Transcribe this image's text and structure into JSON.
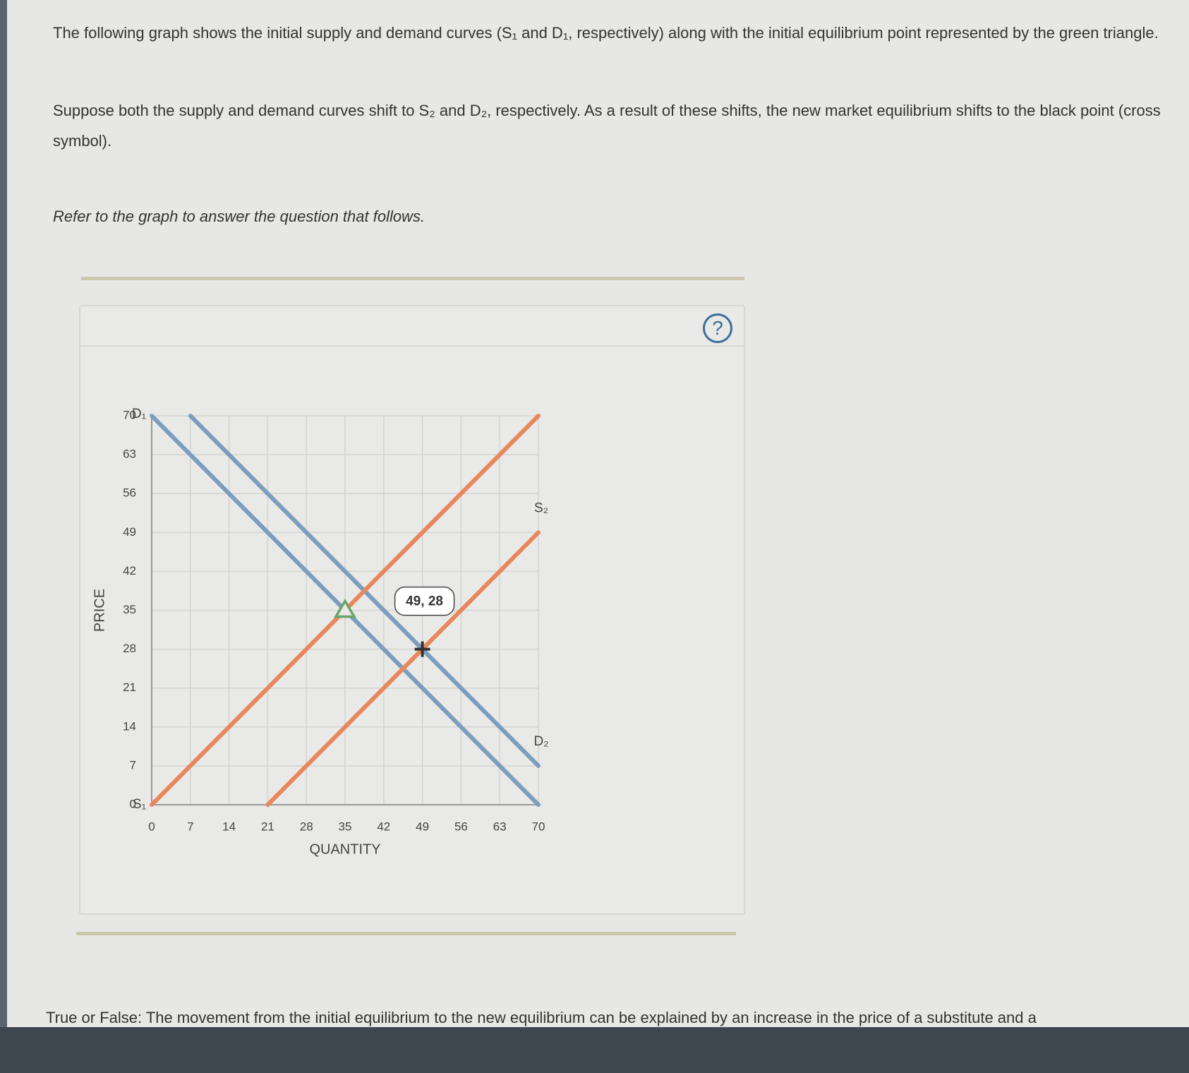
{
  "intro": {
    "paragraph1": "The following graph shows the initial supply and demand curves (S₁ and D₁, respectively) along with the initial equilibrium point represented by the green triangle.",
    "paragraph2": "Suppose both the supply and demand curves shift to S₂ and D₂, respectively. As a result of these shifts, the new market equilibrium shifts to the black point (cross symbol).",
    "instruction": "Refer to the graph to answer the question that follows."
  },
  "help_button": "?",
  "chart_data": {
    "type": "line",
    "xlabel": "QUANTITY",
    "ylabel": "PRICE",
    "xlim": [
      0,
      70
    ],
    "ylim": [
      0,
      70
    ],
    "xticks": [
      0,
      7,
      14,
      21,
      28,
      35,
      42,
      49,
      56,
      63,
      70
    ],
    "yticks": [
      0,
      7,
      14,
      21,
      28,
      35,
      42,
      49,
      56,
      63,
      70
    ],
    "grid": true,
    "series": [
      {
        "name": "D₁",
        "color": "#7c9dbd",
        "x": [
          0,
          70
        ],
        "values": [
          70,
          0
        ]
      },
      {
        "name": "D₂",
        "color": "#7c9dbd",
        "x": [
          7,
          70
        ],
        "values": [
          70,
          7
        ]
      },
      {
        "name": "S₁",
        "color": "#e8875b",
        "x": [
          0,
          70
        ],
        "values": [
          0,
          70
        ]
      },
      {
        "name": "S₂",
        "color": "#e8875b",
        "x": [
          21,
          70
        ],
        "values": [
          0,
          49
        ]
      }
    ],
    "points": [
      {
        "symbol": "triangle",
        "color": "#6aa56a",
        "x": 35,
        "y": 35
      },
      {
        "symbol": "cross",
        "color": "#333333",
        "x": 49,
        "y": 28,
        "label": "49, 28"
      }
    ]
  },
  "question": "True or False: The movement from the initial equilibrium to the new equilibrium can be explained by an increase in the price of a substitute and a"
}
